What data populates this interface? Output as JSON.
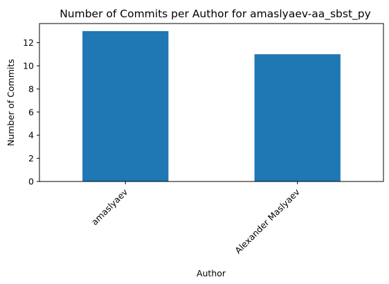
{
  "chart_data": {
    "type": "bar",
    "title": "Number of Commits per Author for amaslyaev-aa_sbst_py",
    "xlabel": "Author",
    "ylabel": "Number of Commits",
    "categories": [
      "amaslyaev",
      "Alexander Maslyaev"
    ],
    "values": [
      13,
      11
    ],
    "ylim": [
      0,
      13.65
    ],
    "yticks": [
      0,
      2,
      4,
      6,
      8,
      10,
      12
    ],
    "grid": false,
    "legend": "none",
    "bar_color": "#1f77b4"
  }
}
